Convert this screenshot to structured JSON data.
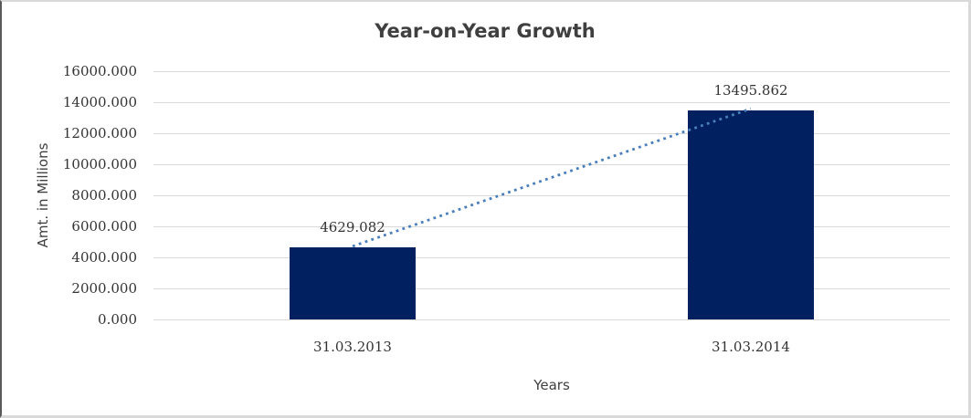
{
  "chart": {
    "title": "Year-on-Year Growth",
    "x_axis_title": "Years",
    "y_axis_title": "Amt. in Millions"
  },
  "chart_data": {
    "type": "bar",
    "title": "Year-on-Year Growth",
    "xlabel": "Years",
    "ylabel": "Amt. in Millions",
    "categories": [
      "31.03.2013",
      "31.03.2014"
    ],
    "series": [
      {
        "name": "Amt. in Millions",
        "values": [
          4629.082,
          13495.862
        ],
        "data_labels": [
          "4629.082",
          "13495.862"
        ]
      }
    ],
    "ylim": [
      0,
      16000
    ],
    "y_tick_step": 2000,
    "y_tick_labels": [
      "0.000",
      "2000.000",
      "4000.000",
      "6000.000",
      "8000.000",
      "10000.000",
      "12000.000",
      "14000.000",
      "16000.000"
    ],
    "grid": true,
    "legend": false,
    "trendline": {
      "style": "dotted",
      "from_value": 4629.082,
      "to_value": 13495.862
    },
    "colors": {
      "bar_fill": "#002060",
      "trendline": "#4a7ebb",
      "gridline": "#d9d9d9",
      "title_text": "#3f3f3f",
      "axis_text": "#333333",
      "label_text": "#404040"
    }
  }
}
